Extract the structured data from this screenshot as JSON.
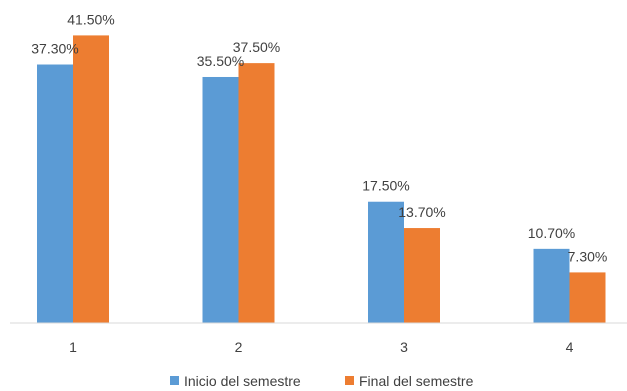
{
  "chart_data": {
    "type": "bar",
    "categories": [
      "1",
      "2",
      "3",
      "4"
    ],
    "series": [
      {
        "name": "Inicio del semestre",
        "values": [
          37.3,
          35.5,
          17.5,
          10.7
        ],
        "labels": [
          "37.30%",
          "35.50%",
          "17.50%",
          "10.70%"
        ],
        "color": "#5B9BD5"
      },
      {
        "name": "Final del semestre",
        "values": [
          41.5,
          37.5,
          13.7,
          7.3
        ],
        "labels": [
          "41.50%",
          "37.50%",
          "13.70%",
          "7.30%"
        ],
        "color": "#ED7D31"
      }
    ],
    "ylim": [
      0,
      45
    ],
    "grid": false,
    "legend": "bottom",
    "axis_color": "#D9D9D9",
    "text_color": "#404040"
  }
}
